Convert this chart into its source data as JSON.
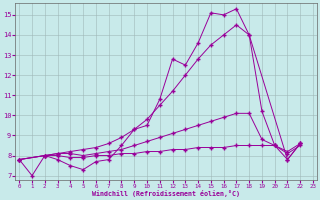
{
  "xlabel": "Windchill (Refroidissement éolien,°C)",
  "background_color": "#c8eaea",
  "grid_color": "#a0b8b8",
  "line_color": "#990099",
  "xlim": [
    -0.3,
    23.3
  ],
  "ylim": [
    6.8,
    15.6
  ],
  "yticks": [
    7,
    8,
    9,
    10,
    11,
    12,
    13,
    14,
    15
  ],
  "xticks": [
    0,
    1,
    2,
    3,
    4,
    5,
    6,
    7,
    8,
    9,
    10,
    11,
    12,
    13,
    14,
    15,
    16,
    17,
    18,
    19,
    20,
    21,
    22,
    23
  ],
  "curve_spiky_x": [
    0,
    1,
    2,
    3,
    4,
    5,
    6,
    7,
    8,
    9,
    10,
    11,
    12,
    13,
    14,
    15,
    16,
    17,
    18,
    19,
    20,
    21,
    22
  ],
  "curve_spiky_y": [
    7.8,
    7.0,
    8.0,
    7.8,
    7.5,
    7.3,
    7.7,
    7.8,
    8.5,
    9.3,
    9.5,
    10.8,
    12.8,
    12.5,
    13.6,
    15.1,
    15.0,
    15.3,
    14.0,
    10.2,
    8.5,
    7.8,
    8.6
  ],
  "curve_diag_x": [
    0,
    2,
    3,
    4,
    5,
    6,
    7,
    8,
    9,
    10,
    11,
    12,
    13,
    14,
    15,
    16,
    17,
    18,
    21,
    22
  ],
  "curve_diag_y": [
    7.8,
    8.0,
    8.1,
    8.2,
    8.3,
    8.4,
    8.6,
    8.9,
    9.3,
    9.8,
    10.5,
    11.2,
    12.0,
    12.8,
    13.5,
    14.0,
    14.5,
    14.0,
    7.8,
    8.6
  ],
  "curve_mid_x": [
    0,
    2,
    3,
    4,
    5,
    6,
    7,
    8,
    9,
    10,
    11,
    12,
    13,
    14,
    15,
    16,
    17,
    18,
    19,
    20,
    21,
    22
  ],
  "curve_mid_y": [
    7.8,
    8.0,
    8.1,
    8.1,
    8.0,
    8.1,
    8.2,
    8.3,
    8.5,
    8.7,
    8.9,
    9.1,
    9.3,
    9.5,
    9.7,
    9.9,
    10.1,
    10.1,
    8.8,
    8.5,
    8.2,
    8.6
  ],
  "curve_flat_x": [
    0,
    2,
    3,
    4,
    5,
    6,
    7,
    8,
    9,
    10,
    11,
    12,
    13,
    14,
    15,
    16,
    17,
    18,
    19,
    20,
    21,
    22
  ],
  "curve_flat_y": [
    7.8,
    8.0,
    8.0,
    7.9,
    7.9,
    8.0,
    8.0,
    8.1,
    8.1,
    8.2,
    8.2,
    8.3,
    8.3,
    8.4,
    8.4,
    8.4,
    8.5,
    8.5,
    8.5,
    8.5,
    8.1,
    8.5
  ]
}
